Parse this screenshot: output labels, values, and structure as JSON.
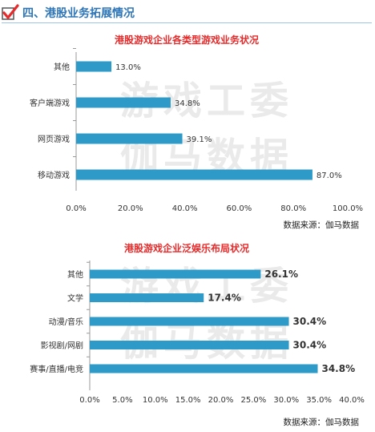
{
  "header": {
    "icon": "checkmark-icon",
    "title": "四、港股业务拓展情况",
    "accent_color": "#2e75b6",
    "check_color": "#e52b2b"
  },
  "watermark": {
    "line1": "游戏工委",
    "line2": "伽马数据"
  },
  "chart_data": [
    {
      "type": "bar",
      "orientation": "horizontal",
      "title": "港股游戏企业各类型游戏业务状况",
      "categories": [
        "其他",
        "客户端游戏",
        "网页游戏",
        "移动游戏"
      ],
      "values": [
        13.0,
        34.8,
        39.1,
        87.0
      ],
      "value_labels": [
        "13.0%",
        "34.8%",
        "39.1%",
        "87.0%"
      ],
      "xlim": [
        0,
        100
      ],
      "xticks": [
        "0.0%",
        "20.0%",
        "40.0%",
        "60.0%",
        "80.0%",
        "100.0%"
      ],
      "grid": false,
      "bar_color": "#2e9ac8",
      "title_color": "#e52b2b",
      "source": "数据来源：伽马数据"
    },
    {
      "type": "bar",
      "orientation": "horizontal",
      "title": "港股游戏企业泛娱乐布局状况",
      "categories": [
        "其他",
        "文学",
        "动漫/音乐",
        "影视剧/网剧",
        "赛事/直播/电竞"
      ],
      "values": [
        26.1,
        17.4,
        30.4,
        30.4,
        34.8
      ],
      "value_labels": [
        "26.1%",
        "17.4%",
        "30.4%",
        "30.4%",
        "34.8%"
      ],
      "xlim": [
        0,
        40
      ],
      "xticks": [
        "0.0%",
        "5.0%",
        "10.0%",
        "15.0%",
        "20.0%",
        "25.0%",
        "30.0%",
        "35.0%",
        "40.0%"
      ],
      "grid": false,
      "bar_color": "#2e9ac8",
      "title_color": "#e52b2b",
      "source": "数据来源：伽马数据"
    }
  ]
}
